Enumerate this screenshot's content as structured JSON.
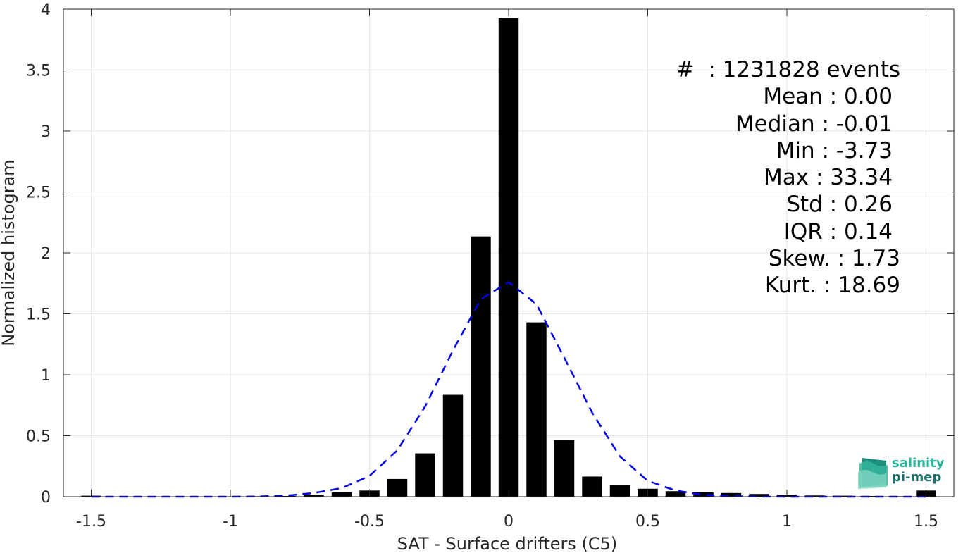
{
  "chart_data": {
    "type": "bar",
    "xlabel": "SAT - Surface drifters (C5)",
    "ylabel": "Normalized histogram",
    "xlim": [
      -1.6,
      1.6
    ],
    "ylim": [
      0,
      4
    ],
    "xticks": [
      -1.5,
      -1,
      -0.5,
      0,
      0.5,
      1,
      1.5
    ],
    "xtick_labels": [
      "-1.5",
      "-1",
      "-0.5",
      "0",
      "0.5",
      "1",
      "1.5"
    ],
    "yticks": [
      0,
      0.5,
      1,
      1.5,
      2,
      2.5,
      3,
      3.5,
      4
    ],
    "ytick_labels": [
      "0",
      "0.5",
      "1",
      "1.5",
      "2",
      "2.5",
      "3",
      "3.5",
      "4"
    ],
    "grid": true,
    "bar_width": 0.072,
    "bar_color": "#000000",
    "bars": {
      "x": [
        -1.5,
        -1.4,
        -1.3,
        -1.2,
        -1.1,
        -1.0,
        -0.9,
        -0.8,
        -0.7,
        -0.6,
        -0.5,
        -0.4,
        -0.3,
        -0.2,
        -0.1,
        0.0,
        0.1,
        0.2,
        0.3,
        0.4,
        0.5,
        0.6,
        0.7,
        0.8,
        0.9,
        1.0,
        1.1,
        1.2,
        1.3,
        1.4,
        1.5
      ],
      "y": [
        0.008,
        0.002,
        0.002,
        0.002,
        0.002,
        0.003,
        0.004,
        0.006,
        0.012,
        0.035,
        0.05,
        0.145,
        0.355,
        0.835,
        2.135,
        3.93,
        1.43,
        0.465,
        0.165,
        0.095,
        0.065,
        0.045,
        0.035,
        0.03,
        0.022,
        0.015,
        0.01,
        0.008,
        0.006,
        0.004,
        0.05
      ]
    },
    "fit_curve": {
      "style": "dashed",
      "color": "#0000e6",
      "x": [
        -1.5,
        -1.4,
        -1.3,
        -1.2,
        -1.1,
        -1.0,
        -0.9,
        -0.8,
        -0.7,
        -0.6,
        -0.5,
        -0.4,
        -0.3,
        -0.2,
        -0.1,
        0.0,
        0.1,
        0.2,
        0.3,
        0.4,
        0.5,
        0.6,
        0.7,
        0.8,
        0.9,
        1.0,
        1.1,
        1.2,
        1.3,
        1.4,
        1.5
      ],
      "y": [
        0,
        0,
        0,
        0,
        0,
        0,
        0.002,
        0.008,
        0.03,
        0.07,
        0.17,
        0.38,
        0.74,
        1.2,
        1.62,
        1.76,
        1.58,
        1.14,
        0.69,
        0.33,
        0.13,
        0.05,
        0.015,
        0.004,
        0.001,
        0,
        0,
        0,
        0,
        0,
        0
      ]
    }
  },
  "stats": {
    "events": "#  : 1231828 events",
    "mean": "Mean : 0.00",
    "median": "Median : -0.01",
    "min": "Min : -3.73",
    "max": "Max : 33.34",
    "std": "Std : 0.26",
    "iqr": "IQR : 0.14",
    "skew": "Skew. : 1.73",
    "kurt": "Kurt. : 18.69"
  },
  "logo": {
    "line1": "salinity",
    "line2": "pi-mep",
    "color1": "#2bb39b",
    "color2": "#1f6f6a"
  }
}
